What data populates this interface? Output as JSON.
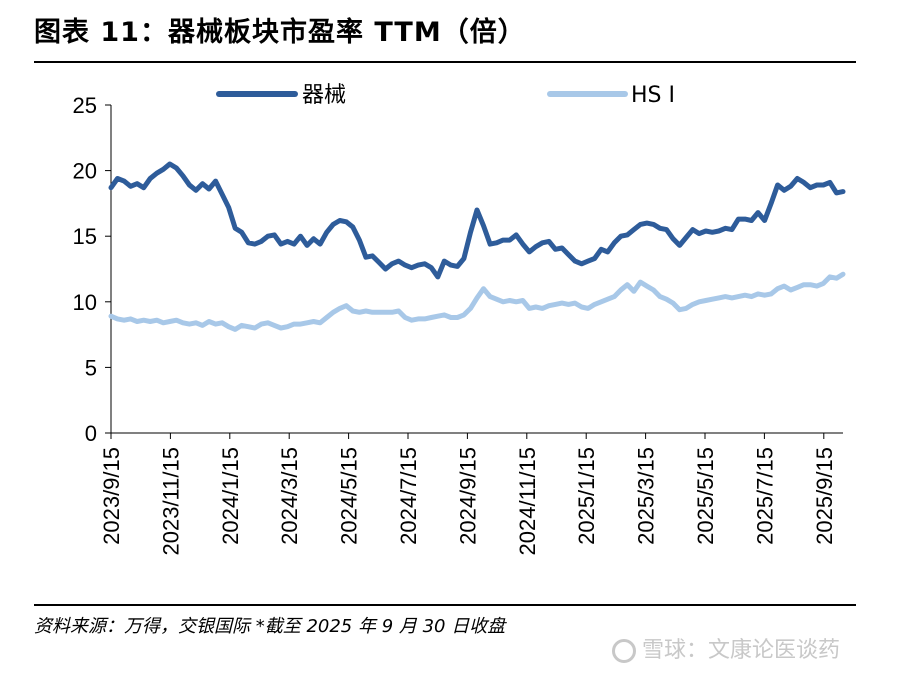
{
  "title": "图表 11：器械板块市盈率 TTM（倍）",
  "source": "资料来源：万得，交银国际   *截至 2025 年 9 月 30 日收盘",
  "watermark": {
    "text": "雪球：文康论医谈药",
    "icon": "snowball-logo-icon"
  },
  "chart_data": {
    "type": "line",
    "ylim": [
      0,
      25
    ],
    "yticks": [
      0,
      5,
      10,
      15,
      20,
      25
    ],
    "x_labels": [
      "2023/9/15",
      "2023/11/15",
      "2024/1/15",
      "2024/3/15",
      "2024/5/15",
      "2024/7/15",
      "2024/9/15",
      "2024/11/15",
      "2025/1/15",
      "2025/3/15",
      "2025/5/15",
      "2025/7/15",
      "2025/9/15"
    ],
    "legend_position": "top",
    "series": [
      {
        "name": "器械",
        "color": "#2e5c9a",
        "values": [
          18.7,
          19.4,
          19.2,
          18.8,
          19.0,
          18.7,
          19.4,
          19.8,
          20.1,
          20.5,
          20.2,
          19.6,
          18.9,
          18.5,
          19.0,
          18.6,
          19.2,
          18.2,
          17.2,
          15.6,
          15.3,
          14.5,
          14.4,
          14.6,
          15.0,
          15.1,
          14.4,
          14.6,
          14.4,
          15.0,
          14.3,
          14.8,
          14.4,
          15.3,
          15.9,
          16.2,
          16.1,
          15.7,
          14.7,
          13.4,
          13.5,
          13.0,
          12.5,
          12.9,
          13.1,
          12.8,
          12.6,
          12.8,
          12.9,
          12.6,
          11.9,
          13.1,
          12.8,
          12.7,
          13.3,
          15.3,
          17.0,
          15.8,
          14.4,
          14.5,
          14.7,
          14.7,
          15.1,
          14.4,
          13.8,
          14.2,
          14.5,
          14.6,
          14.0,
          14.1,
          13.6,
          13.1,
          12.9,
          13.1,
          13.3,
          14.0,
          13.8,
          14.5,
          15.0,
          15.1,
          15.5,
          15.9,
          16.0,
          15.9,
          15.6,
          15.5,
          14.8,
          14.3,
          14.9,
          15.5,
          15.2,
          15.4,
          15.3,
          15.4,
          15.6,
          15.5,
          16.3,
          16.3,
          16.2,
          16.8,
          16.2,
          17.5,
          18.9,
          18.5,
          18.8,
          19.4,
          19.1,
          18.7,
          18.9,
          18.9,
          19.1,
          18.3,
          18.4
        ]
      },
      {
        "name": "HS I",
        "color": "#a8c8e8",
        "values": [
          8.9,
          8.7,
          8.6,
          8.7,
          8.5,
          8.6,
          8.5,
          8.6,
          8.4,
          8.5,
          8.6,
          8.4,
          8.3,
          8.4,
          8.2,
          8.5,
          8.3,
          8.4,
          8.1,
          7.9,
          8.2,
          8.1,
          8.0,
          8.3,
          8.4,
          8.2,
          8.0,
          8.1,
          8.3,
          8.3,
          8.4,
          8.5,
          8.4,
          8.8,
          9.2,
          9.5,
          9.7,
          9.3,
          9.2,
          9.3,
          9.2,
          9.2,
          9.2,
          9.2,
          9.3,
          8.8,
          8.6,
          8.7,
          8.7,
          8.8,
          8.9,
          9.0,
          8.8,
          8.8,
          9.0,
          9.5,
          10.3,
          11.0,
          10.4,
          10.2,
          10.0,
          10.1,
          10.0,
          10.1,
          9.5,
          9.6,
          9.5,
          9.7,
          9.8,
          9.9,
          9.8,
          9.9,
          9.6,
          9.5,
          9.8,
          10.0,
          10.2,
          10.4,
          10.9,
          11.3,
          10.8,
          11.5,
          11.2,
          10.9,
          10.4,
          10.2,
          9.9,
          9.4,
          9.5,
          9.8,
          10.0,
          10.1,
          10.2,
          10.3,
          10.4,
          10.3,
          10.4,
          10.5,
          10.4,
          10.6,
          10.5,
          10.6,
          11.0,
          11.2,
          10.9,
          11.1,
          11.3,
          11.3,
          11.2,
          11.4,
          11.9,
          11.8,
          12.1
        ]
      }
    ]
  }
}
